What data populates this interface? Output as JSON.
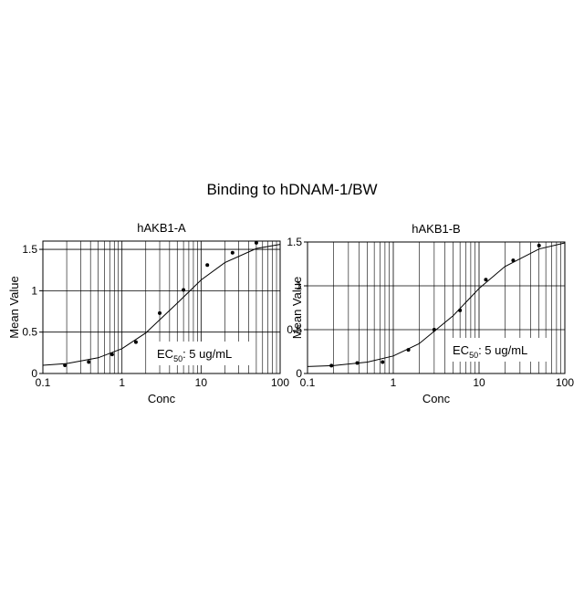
{
  "title": "Binding to hDNAM-1/BW",
  "chart_data": [
    {
      "type": "scatter",
      "title": "hAKB1-A",
      "x_label": "Conc",
      "y_label": "Mean Value",
      "log_x": true,
      "grid": true,
      "minor_grid": true,
      "color": "#000000",
      "xlim": [
        0.1,
        100
      ],
      "xticks": [
        0.1,
        1,
        10,
        100
      ],
      "ylim": [
        0,
        1.6
      ],
      "yticks": [
        0,
        0.5,
        1,
        1.5
      ],
      "x": [
        0.19,
        0.38,
        0.75,
        1.5,
        3,
        6,
        12,
        25,
        50
      ],
      "values": [
        0.1,
        0.14,
        0.23,
        0.38,
        0.73,
        1.01,
        1.31,
        1.46,
        1.58
      ],
      "fit": {
        "x": [
          0.1,
          0.2,
          0.5,
          1,
          2,
          5,
          10,
          20,
          50,
          100
        ],
        "values": [
          0.1,
          0.12,
          0.19,
          0.3,
          0.49,
          0.85,
          1.13,
          1.34,
          1.51,
          1.56
        ]
      },
      "annotation": {
        "prefix": "EC",
        "sub": "50",
        "text": ":  5 ug/mL"
      }
    },
    {
      "type": "scatter",
      "title": "hAKB1-B",
      "x_label": "Conc",
      "y_label": "Mean Value",
      "log_x": true,
      "grid": true,
      "minor_grid": true,
      "color": "#000000",
      "xlim": [
        0.1,
        100
      ],
      "xticks": [
        0.1,
        1,
        10,
        100
      ],
      "ylim": [
        0,
        1.5
      ],
      "yticks": [
        0,
        0.5,
        1,
        1.5
      ],
      "x": [
        0.19,
        0.38,
        0.75,
        1.5,
        3,
        6,
        12,
        25,
        50
      ],
      "values": [
        0.09,
        0.12,
        0.13,
        0.27,
        0.5,
        0.72,
        1.07,
        1.29,
        1.46
      ],
      "fit": {
        "x": [
          0.1,
          0.2,
          0.5,
          1,
          2,
          5,
          10,
          20,
          50,
          100
        ],
        "values": [
          0.08,
          0.09,
          0.13,
          0.2,
          0.34,
          0.66,
          0.97,
          1.22,
          1.42,
          1.49
        ]
      },
      "annotation": {
        "prefix": "EC",
        "sub": "50",
        "text": ":  5 ug/mL"
      }
    }
  ]
}
